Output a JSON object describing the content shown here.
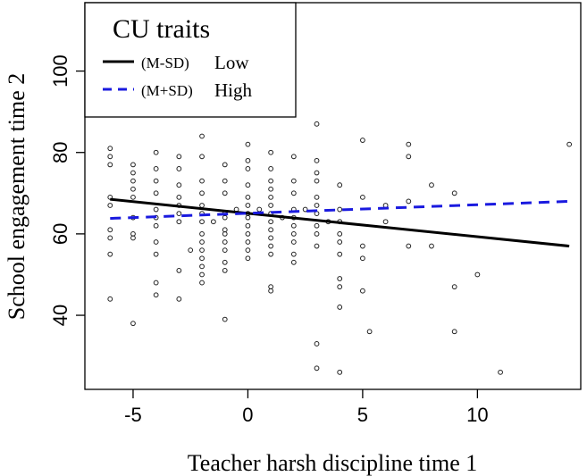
{
  "chart_data": {
    "type": "scatter",
    "title": "",
    "xlabel": "Teacher harsh discipline time 1",
    "ylabel": "School engagement time 2",
    "xlim": [
      -7.1,
      14.5
    ],
    "ylim": [
      21.8,
      116.8
    ],
    "x_ticks": [
      -5,
      0,
      5,
      10
    ],
    "x_tick_labels": [
      "-5",
      "0",
      "5",
      "10"
    ],
    "y_ticks": [
      40,
      60,
      80,
      100
    ],
    "y_tick_labels": [
      "40",
      "60",
      "80",
      "100"
    ],
    "grid": false,
    "legend": {
      "title": "CU traits",
      "position": "top-left",
      "entries": [
        {
          "key": "(M-SD)",
          "label": "Low"
        },
        {
          "key": "(M+SD)",
          "label": "High"
        }
      ]
    },
    "series": [
      {
        "name": "(M-SD) Low",
        "style": "solid",
        "color": "#000000",
        "x": [
          -6,
          14
        ],
        "y": [
          68.5,
          57.0
        ]
      },
      {
        "name": "(M+SD) High",
        "style": "dashed",
        "color": "#1a1adf",
        "x": [
          -6,
          14
        ],
        "y": [
          63.8,
          68.0
        ]
      }
    ],
    "points": [
      [
        -6,
        81
      ],
      [
        -6,
        79
      ],
      [
        -6,
        77
      ],
      [
        -6,
        69
      ],
      [
        -6,
        67
      ],
      [
        -6,
        61
      ],
      [
        -6,
        59
      ],
      [
        -6,
        55
      ],
      [
        -6,
        44
      ],
      [
        -5,
        77
      ],
      [
        -5,
        75
      ],
      [
        -5,
        73
      ],
      [
        -5,
        71
      ],
      [
        -5,
        69
      ],
      [
        -5,
        64
      ],
      [
        -5,
        60
      ],
      [
        -5,
        59
      ],
      [
        -5,
        38
      ],
      [
        -4,
        80
      ],
      [
        -4,
        76
      ],
      [
        -4,
        73
      ],
      [
        -4,
        70
      ],
      [
        -4,
        66
      ],
      [
        -4,
        64
      ],
      [
        -4,
        62
      ],
      [
        -4,
        58
      ],
      [
        -4,
        55
      ],
      [
        -4,
        48
      ],
      [
        -4,
        45
      ],
      [
        -3,
        79
      ],
      [
        -3,
        76
      ],
      [
        -3,
        72
      ],
      [
        -3,
        69
      ],
      [
        -3,
        67
      ],
      [
        -3,
        65
      ],
      [
        -3,
        63
      ],
      [
        -3,
        51
      ],
      [
        -3,
        44
      ],
      [
        -2.5,
        56
      ],
      [
        -2,
        84
      ],
      [
        -2,
        79
      ],
      [
        -2,
        73
      ],
      [
        -2,
        70
      ],
      [
        -2,
        67
      ],
      [
        -2,
        65
      ],
      [
        -2,
        63
      ],
      [
        -2,
        60
      ],
      [
        -2,
        58
      ],
      [
        -2,
        56
      ],
      [
        -2,
        54
      ],
      [
        -2,
        52
      ],
      [
        -2,
        50
      ],
      [
        -2,
        48
      ],
      [
        -1.5,
        63
      ],
      [
        -1,
        77
      ],
      [
        -1,
        73
      ],
      [
        -1,
        70
      ],
      [
        -1,
        65
      ],
      [
        -1,
        64
      ],
      [
        -1,
        61
      ],
      [
        -1,
        60
      ],
      [
        -1,
        58
      ],
      [
        -1,
        56
      ],
      [
        -1,
        53
      ],
      [
        -1,
        51
      ],
      [
        -1,
        39
      ],
      [
        -0.5,
        66
      ],
      [
        0,
        82
      ],
      [
        0,
        78
      ],
      [
        0,
        76
      ],
      [
        0,
        72
      ],
      [
        0,
        69
      ],
      [
        0,
        67
      ],
      [
        0,
        65
      ],
      [
        0,
        64
      ],
      [
        0,
        62
      ],
      [
        0,
        60
      ],
      [
        0,
        58
      ],
      [
        0,
        56
      ],
      [
        0,
        54
      ],
      [
        0.5,
        66
      ],
      [
        1,
        80
      ],
      [
        1,
        76
      ],
      [
        1,
        73
      ],
      [
        1,
        71
      ],
      [
        1,
        69
      ],
      [
        1,
        67
      ],
      [
        1,
        65
      ],
      [
        1,
        63
      ],
      [
        1,
        61
      ],
      [
        1,
        59
      ],
      [
        1,
        57
      ],
      [
        1,
        55
      ],
      [
        1,
        47
      ],
      [
        1,
        46
      ],
      [
        1.5,
        64
      ],
      [
        2,
        79
      ],
      [
        2,
        73
      ],
      [
        2,
        70
      ],
      [
        2,
        66
      ],
      [
        2,
        64
      ],
      [
        2,
        62
      ],
      [
        2,
        60
      ],
      [
        2,
        58
      ],
      [
        2,
        55
      ],
      [
        2,
        53
      ],
      [
        2.5,
        66
      ],
      [
        3,
        87
      ],
      [
        3,
        78
      ],
      [
        3,
        75
      ],
      [
        3,
        73
      ],
      [
        3,
        69
      ],
      [
        3,
        67
      ],
      [
        3,
        65
      ],
      [
        3,
        62
      ],
      [
        3,
        60
      ],
      [
        3,
        57
      ],
      [
        3,
        33
      ],
      [
        3,
        27
      ],
      [
        3.5,
        63
      ],
      [
        4,
        72
      ],
      [
        4,
        66
      ],
      [
        4,
        63
      ],
      [
        4,
        60
      ],
      [
        4,
        58
      ],
      [
        4,
        55
      ],
      [
        4,
        49
      ],
      [
        4,
        47
      ],
      [
        4,
        42
      ],
      [
        4,
        26
      ],
      [
        5,
        83
      ],
      [
        5,
        69
      ],
      [
        5,
        57
      ],
      [
        5,
        54
      ],
      [
        5,
        46
      ],
      [
        5.3,
        36
      ],
      [
        6,
        67
      ],
      [
        6,
        63
      ],
      [
        7,
        82
      ],
      [
        7,
        79
      ],
      [
        7,
        68
      ],
      [
        7,
        57
      ],
      [
        8,
        72
      ],
      [
        8,
        57
      ],
      [
        9,
        70
      ],
      [
        9,
        47
      ],
      [
        9,
        36
      ],
      [
        10,
        50
      ],
      [
        11,
        26
      ],
      [
        14,
        82
      ]
    ]
  }
}
